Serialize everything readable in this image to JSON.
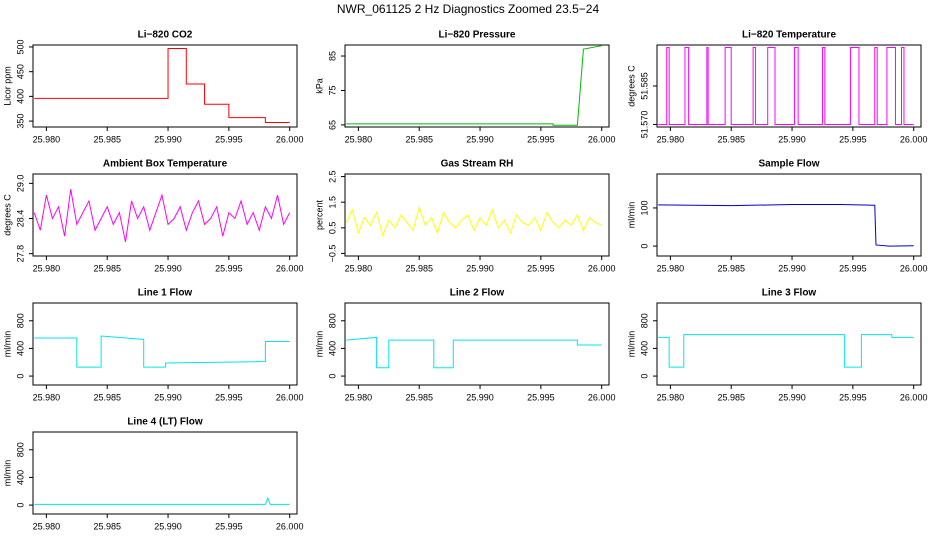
{
  "title": "NWR_061125  2 Hz Diagnostics Zoomed 23.5−24",
  "chart_data": [
    {
      "type": "line",
      "title": "Li−820 CO2",
      "ylabel": "Licor ppm",
      "color": "#ff0000",
      "x": [
        25.979,
        25.99,
        25.99,
        25.9915,
        25.9915,
        25.993,
        25.993,
        25.995,
        25.995,
        25.998,
        25.998,
        26.0
      ],
      "values": [
        396,
        396,
        497,
        497,
        425,
        425,
        384,
        384,
        357,
        357,
        347,
        347
      ],
      "xlim": [
        25.9789,
        26.0006
      ],
      "xticks": [
        {
          "value": 25.98,
          "label": "25.980"
        },
        25.985,
        {
          "value": 25.99,
          "label": "25.990"
        },
        25.995,
        {
          "value": 26.0,
          "label": "26.000"
        }
      ],
      "ylim": [
        338,
        504
      ],
      "yticks": [
        350,
        400,
        450,
        500
      ]
    },
    {
      "type": "line",
      "title": "Li−820 Pressure",
      "ylabel": "kPa",
      "color": "#00bb00",
      "x": [
        25.979,
        25.996,
        25.996,
        25.998,
        25.9985,
        26.0
      ],
      "values": [
        65.3,
        65.3,
        64.9,
        64.9,
        87,
        88
      ],
      "xlim": [
        25.9789,
        26.0006
      ],
      "xticks": [
        {
          "value": 25.98,
          "label": "25.980"
        },
        25.985,
        {
          "value": 25.99,
          "label": "25.990"
        },
        25.995,
        {
          "value": 26.0,
          "label": "26.000"
        }
      ],
      "ylim": [
        64.4,
        88.2
      ],
      "yticks": [
        65,
        75,
        85
      ]
    },
    {
      "type": "line",
      "title": "Li−820 Temperature",
      "ylabel": "degrees C",
      "color": "#ff00ff",
      "x": [
        25.979,
        25.9797,
        25.9797,
        25.9799,
        25.9799,
        25.9812,
        25.9812,
        25.9815,
        25.9815,
        25.983,
        25.983,
        25.9831,
        25.9831,
        25.9845,
        25.9845,
        25.985,
        25.985,
        25.9868,
        25.9868,
        25.987,
        25.987,
        25.988,
        25.988,
        25.9886,
        25.9886,
        25.9902,
        25.9902,
        25.9905,
        25.9905,
        25.9925,
        25.9925,
        25.9927,
        25.9927,
        25.9948,
        25.9948,
        25.9955,
        25.9955,
        25.9968,
        25.9968,
        25.997,
        25.997,
        25.9978,
        25.9978,
        25.9985,
        25.9985,
        25.999,
        25.999,
        25.9992,
        25.9992,
        26.0
      ],
      "values": [
        51.57,
        51.57,
        51.6,
        51.6,
        51.57,
        51.57,
        51.6,
        51.6,
        51.57,
        51.57,
        51.6,
        51.6,
        51.57,
        51.57,
        51.6,
        51.6,
        51.57,
        51.57,
        51.6,
        51.6,
        51.57,
        51.57,
        51.6,
        51.6,
        51.57,
        51.57,
        51.6,
        51.6,
        51.57,
        51.57,
        51.6,
        51.6,
        51.57,
        51.57,
        51.6,
        51.6,
        51.57,
        51.57,
        51.6,
        51.6,
        51.57,
        51.57,
        51.6,
        51.6,
        51.57,
        51.57,
        51.6,
        51.6,
        51.57,
        51.57
      ],
      "xlim": [
        25.9789,
        26.0006
      ],
      "xticks": [
        {
          "value": 25.98,
          "label": "25.980"
        },
        25.985,
        {
          "value": 25.99,
          "label": "25.990"
        },
        25.995,
        {
          "value": 26.0,
          "label": "26.000"
        }
      ],
      "ylim": [
        51.569,
        51.601
      ],
      "yticks": [
        {
          "value": 51.57,
          "label": "51.570"
        },
        51.585
      ]
    },
    {
      "type": "line",
      "title": "Ambient Box Temperature",
      "ylabel": "degrees C",
      "color": "#ff00ff",
      "x": [
        25.979,
        25.9795,
        25.98,
        25.9805,
        25.981,
        25.9815,
        25.982,
        25.9825,
        25.983,
        25.9835,
        25.984,
        25.9845,
        25.985,
        25.9855,
        25.986,
        25.9865,
        25.987,
        25.9875,
        25.988,
        25.9885,
        25.989,
        25.9895,
        25.99,
        25.9905,
        25.991,
        25.9915,
        25.992,
        25.9925,
        25.993,
        25.9935,
        25.994,
        25.9945,
        25.995,
        25.9955,
        25.996,
        25.9965,
        25.997,
        25.9975,
        25.998,
        25.9985,
        25.999,
        25.9995,
        26.0
      ],
      "values": [
        28.5,
        28.2,
        28.8,
        28.4,
        28.6,
        28.1,
        28.9,
        28.3,
        28.5,
        28.7,
        28.2,
        28.4,
        28.6,
        28.3,
        28.5,
        28.0,
        28.7,
        28.4,
        28.6,
        28.2,
        28.5,
        28.8,
        28.3,
        28.4,
        28.6,
        28.2,
        28.5,
        28.7,
        28.3,
        28.4,
        28.6,
        28.1,
        28.5,
        28.4,
        28.7,
        28.3,
        28.5,
        28.2,
        28.6,
        28.4,
        28.8,
        28.3,
        28.5
      ],
      "xlim": [
        25.9789,
        26.0006
      ],
      "xticks": [
        {
          "value": 25.98,
          "label": "25.980"
        },
        25.985,
        {
          "value": 25.99,
          "label": "25.990"
        },
        25.995,
        {
          "value": 26.0,
          "label": "26.000"
        }
      ],
      "ylim": [
        27.76,
        29.16
      ],
      "yticks": [
        27.8,
        28.4,
        {
          "value": 29,
          "label": "29.0"
        }
      ]
    },
    {
      "type": "line",
      "title": "Gas Stream RH",
      "ylabel": "percent",
      "color": "#ffff00",
      "x": [
        25.979,
        25.9795,
        25.98,
        25.9805,
        25.981,
        25.9815,
        25.982,
        25.9825,
        25.983,
        25.9835,
        25.984,
        25.9845,
        25.985,
        25.9855,
        25.986,
        25.9865,
        25.987,
        25.9875,
        25.988,
        25.9885,
        25.989,
        25.9895,
        25.99,
        25.9905,
        25.991,
        25.9915,
        25.992,
        25.9925,
        25.993,
        25.9935,
        25.994,
        25.9945,
        25.995,
        25.9955,
        25.996,
        25.9965,
        25.997,
        25.9975,
        25.998,
        25.9985,
        25.999,
        25.9995,
        26.0
      ],
      "values": [
        0.7,
        1.2,
        0.3,
        0.9,
        0.6,
        1.1,
        0.2,
        0.8,
        0.5,
        1.0,
        0.7,
        0.4,
        1.3,
        0.6,
        0.9,
        0.3,
        1.1,
        0.7,
        0.5,
        0.8,
        1.0,
        0.4,
        0.9,
        0.6,
        1.2,
        0.5,
        0.8,
        0.3,
        1.0,
        0.7,
        0.6,
        0.9,
        0.4,
        1.1,
        0.7,
        0.5,
        0.8,
        0.6,
        1.0,
        0.4,
        0.9,
        0.7,
        0.6
      ],
      "xlim": [
        25.9789,
        26.0006
      ],
      "xticks": [
        {
          "value": 25.98,
          "label": "25.980"
        },
        25.985,
        {
          "value": 25.99,
          "label": "25.990"
        },
        25.995,
        {
          "value": 26.0,
          "label": "26.000"
        }
      ],
      "ylim": [
        -0.6,
        2.6
      ],
      "yticks": [
        {
          "value": -0.5,
          "label": "−0.5"
        },
        0.5,
        1.5,
        2.5
      ]
    },
    {
      "type": "line",
      "title": "Sample Flow",
      "ylabel": "ml/min",
      "color": "#0000cc",
      "x": [
        25.979,
        25.985,
        25.99,
        25.994,
        25.9968,
        25.9969,
        25.998,
        26.0
      ],
      "values": [
        108,
        106,
        109,
        109,
        107,
        3,
        0,
        1
      ],
      "xlim": [
        25.9789,
        26.0006
      ],
      "xticks": [
        {
          "value": 25.98,
          "label": "25.980"
        },
        25.985,
        {
          "value": 25.99,
          "label": "25.990"
        },
        25.995,
        {
          "value": 26.0,
          "label": "26.000"
        }
      ],
      "ylim": [
        -26,
        189
      ],
      "yticks": [
        0,
        100
      ]
    },
    {
      "type": "line",
      "title": "Line 1 Flow",
      "ylabel": "ml/min",
      "color": "#00e5ee",
      "x": [
        25.979,
        25.9825,
        25.9825,
        25.9845,
        25.9845,
        25.988,
        25.988,
        25.9898,
        25.9898,
        25.998,
        25.998,
        26.0
      ],
      "values": [
        550,
        550,
        130,
        130,
        580,
        530,
        130,
        130,
        190,
        210,
        500,
        500
      ],
      "xlim": [
        25.9789,
        26.0006
      ],
      "xticks": [
        {
          "value": 25.98,
          "label": "25.980"
        },
        25.985,
        {
          "value": 25.99,
          "label": "25.990"
        },
        25.995,
        {
          "value": 26.0,
          "label": "26.000"
        }
      ],
      "ylim": [
        -129,
        1057
      ],
      "yticks": [
        0,
        400,
        800
      ]
    },
    {
      "type": "line",
      "title": "Line 2 Flow",
      "ylabel": "ml/min",
      "color": "#00e5ee",
      "x": [
        25.979,
        25.9815,
        25.9815,
        25.9825,
        25.9825,
        25.9862,
        25.9862,
        25.9878,
        25.9878,
        25.998,
        25.998,
        26.0
      ],
      "values": [
        520,
        560,
        120,
        120,
        520,
        520,
        120,
        120,
        520,
        520,
        450,
        450
      ],
      "xlim": [
        25.9789,
        26.0006
      ],
      "xticks": [
        {
          "value": 25.98,
          "label": "25.980"
        },
        25.985,
        {
          "value": 25.99,
          "label": "25.990"
        },
        25.995,
        {
          "value": 26.0,
          "label": "26.000"
        }
      ],
      "ylim": [
        -129,
        1057
      ],
      "yticks": [
        0,
        400,
        800
      ]
    },
    {
      "type": "line",
      "title": "Line 3 Flow",
      "ylabel": "ml/min",
      "color": "#00e5ee",
      "x": [
        25.979,
        25.9799,
        25.9799,
        25.9811,
        25.9811,
        25.9943,
        25.9943,
        25.9957,
        25.9957,
        25.9982,
        25.9982,
        26.0
      ],
      "values": [
        560,
        560,
        130,
        130,
        600,
        600,
        130,
        130,
        600,
        600,
        560,
        560
      ],
      "xlim": [
        25.9789,
        26.0006
      ],
      "xticks": [
        {
          "value": 25.98,
          "label": "25.980"
        },
        25.985,
        {
          "value": 25.99,
          "label": "25.990"
        },
        25.995,
        {
          "value": 26.0,
          "label": "26.000"
        }
      ],
      "ylim": [
        -129,
        1057
      ],
      "yticks": [
        0,
        400,
        800
      ]
    },
    {
      "type": "line",
      "title": "Line 4 (LT) Flow",
      "ylabel": "ml/min",
      "color": "#00e5ee",
      "x": [
        25.979,
        25.998,
        25.9982,
        25.9984,
        26.0
      ],
      "values": [
        10,
        10,
        100,
        10,
        10
      ],
      "xlim": [
        25.9789,
        26.0006
      ],
      "xticks": [
        {
          "value": 25.98,
          "label": "25.980"
        },
        25.985,
        {
          "value": 25.99,
          "label": "25.990"
        },
        25.995,
        {
          "value": 26.0,
          "label": "26.000"
        }
      ],
      "ylim": [
        -129,
        1057
      ],
      "yticks": [
        0,
        400,
        800
      ]
    }
  ]
}
